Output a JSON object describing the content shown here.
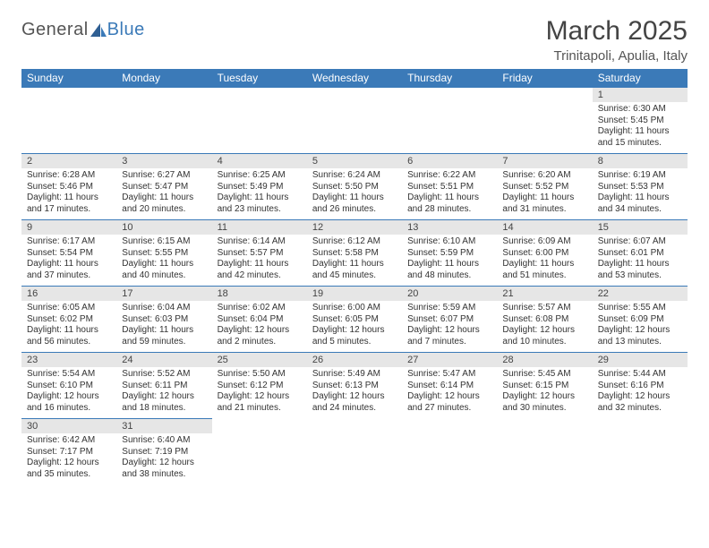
{
  "brand": {
    "part1": "General",
    "part2": "Blue"
  },
  "title": "March 2025",
  "location": "Trinitapoli, Apulia, Italy",
  "colors": {
    "header_bg": "#3b7ab8",
    "header_text": "#ffffff",
    "daynum_bg": "#e6e6e6",
    "border": "#3b7ab8",
    "text": "#333333"
  },
  "fonts": {
    "title_size": 30,
    "location_size": 15,
    "header_size": 12,
    "cell_size": 10
  },
  "weekdays": [
    "Sunday",
    "Monday",
    "Tuesday",
    "Wednesday",
    "Thursday",
    "Friday",
    "Saturday"
  ],
  "weeks": [
    [
      null,
      null,
      null,
      null,
      null,
      null,
      {
        "n": "1",
        "sunrise": "Sunrise: 6:30 AM",
        "sunset": "Sunset: 5:45 PM",
        "day1": "Daylight: 11 hours",
        "day2": "and 15 minutes."
      }
    ],
    [
      {
        "n": "2",
        "sunrise": "Sunrise: 6:28 AM",
        "sunset": "Sunset: 5:46 PM",
        "day1": "Daylight: 11 hours",
        "day2": "and 17 minutes."
      },
      {
        "n": "3",
        "sunrise": "Sunrise: 6:27 AM",
        "sunset": "Sunset: 5:47 PM",
        "day1": "Daylight: 11 hours",
        "day2": "and 20 minutes."
      },
      {
        "n": "4",
        "sunrise": "Sunrise: 6:25 AM",
        "sunset": "Sunset: 5:49 PM",
        "day1": "Daylight: 11 hours",
        "day2": "and 23 minutes."
      },
      {
        "n": "5",
        "sunrise": "Sunrise: 6:24 AM",
        "sunset": "Sunset: 5:50 PM",
        "day1": "Daylight: 11 hours",
        "day2": "and 26 minutes."
      },
      {
        "n": "6",
        "sunrise": "Sunrise: 6:22 AM",
        "sunset": "Sunset: 5:51 PM",
        "day1": "Daylight: 11 hours",
        "day2": "and 28 minutes."
      },
      {
        "n": "7",
        "sunrise": "Sunrise: 6:20 AM",
        "sunset": "Sunset: 5:52 PM",
        "day1": "Daylight: 11 hours",
        "day2": "and 31 minutes."
      },
      {
        "n": "8",
        "sunrise": "Sunrise: 6:19 AM",
        "sunset": "Sunset: 5:53 PM",
        "day1": "Daylight: 11 hours",
        "day2": "and 34 minutes."
      }
    ],
    [
      {
        "n": "9",
        "sunrise": "Sunrise: 6:17 AM",
        "sunset": "Sunset: 5:54 PM",
        "day1": "Daylight: 11 hours",
        "day2": "and 37 minutes."
      },
      {
        "n": "10",
        "sunrise": "Sunrise: 6:15 AM",
        "sunset": "Sunset: 5:55 PM",
        "day1": "Daylight: 11 hours",
        "day2": "and 40 minutes."
      },
      {
        "n": "11",
        "sunrise": "Sunrise: 6:14 AM",
        "sunset": "Sunset: 5:57 PM",
        "day1": "Daylight: 11 hours",
        "day2": "and 42 minutes."
      },
      {
        "n": "12",
        "sunrise": "Sunrise: 6:12 AM",
        "sunset": "Sunset: 5:58 PM",
        "day1": "Daylight: 11 hours",
        "day2": "and 45 minutes."
      },
      {
        "n": "13",
        "sunrise": "Sunrise: 6:10 AM",
        "sunset": "Sunset: 5:59 PM",
        "day1": "Daylight: 11 hours",
        "day2": "and 48 minutes."
      },
      {
        "n": "14",
        "sunrise": "Sunrise: 6:09 AM",
        "sunset": "Sunset: 6:00 PM",
        "day1": "Daylight: 11 hours",
        "day2": "and 51 minutes."
      },
      {
        "n": "15",
        "sunrise": "Sunrise: 6:07 AM",
        "sunset": "Sunset: 6:01 PM",
        "day1": "Daylight: 11 hours",
        "day2": "and 53 minutes."
      }
    ],
    [
      {
        "n": "16",
        "sunrise": "Sunrise: 6:05 AM",
        "sunset": "Sunset: 6:02 PM",
        "day1": "Daylight: 11 hours",
        "day2": "and 56 minutes."
      },
      {
        "n": "17",
        "sunrise": "Sunrise: 6:04 AM",
        "sunset": "Sunset: 6:03 PM",
        "day1": "Daylight: 11 hours",
        "day2": "and 59 minutes."
      },
      {
        "n": "18",
        "sunrise": "Sunrise: 6:02 AM",
        "sunset": "Sunset: 6:04 PM",
        "day1": "Daylight: 12 hours",
        "day2": "and 2 minutes."
      },
      {
        "n": "19",
        "sunrise": "Sunrise: 6:00 AM",
        "sunset": "Sunset: 6:05 PM",
        "day1": "Daylight: 12 hours",
        "day2": "and 5 minutes."
      },
      {
        "n": "20",
        "sunrise": "Sunrise: 5:59 AM",
        "sunset": "Sunset: 6:07 PM",
        "day1": "Daylight: 12 hours",
        "day2": "and 7 minutes."
      },
      {
        "n": "21",
        "sunrise": "Sunrise: 5:57 AM",
        "sunset": "Sunset: 6:08 PM",
        "day1": "Daylight: 12 hours",
        "day2": "and 10 minutes."
      },
      {
        "n": "22",
        "sunrise": "Sunrise: 5:55 AM",
        "sunset": "Sunset: 6:09 PM",
        "day1": "Daylight: 12 hours",
        "day2": "and 13 minutes."
      }
    ],
    [
      {
        "n": "23",
        "sunrise": "Sunrise: 5:54 AM",
        "sunset": "Sunset: 6:10 PM",
        "day1": "Daylight: 12 hours",
        "day2": "and 16 minutes."
      },
      {
        "n": "24",
        "sunrise": "Sunrise: 5:52 AM",
        "sunset": "Sunset: 6:11 PM",
        "day1": "Daylight: 12 hours",
        "day2": "and 18 minutes."
      },
      {
        "n": "25",
        "sunrise": "Sunrise: 5:50 AM",
        "sunset": "Sunset: 6:12 PM",
        "day1": "Daylight: 12 hours",
        "day2": "and 21 minutes."
      },
      {
        "n": "26",
        "sunrise": "Sunrise: 5:49 AM",
        "sunset": "Sunset: 6:13 PM",
        "day1": "Daylight: 12 hours",
        "day2": "and 24 minutes."
      },
      {
        "n": "27",
        "sunrise": "Sunrise: 5:47 AM",
        "sunset": "Sunset: 6:14 PM",
        "day1": "Daylight: 12 hours",
        "day2": "and 27 minutes."
      },
      {
        "n": "28",
        "sunrise": "Sunrise: 5:45 AM",
        "sunset": "Sunset: 6:15 PM",
        "day1": "Daylight: 12 hours",
        "day2": "and 30 minutes."
      },
      {
        "n": "29",
        "sunrise": "Sunrise: 5:44 AM",
        "sunset": "Sunset: 6:16 PM",
        "day1": "Daylight: 12 hours",
        "day2": "and 32 minutes."
      }
    ],
    [
      {
        "n": "30",
        "sunrise": "Sunrise: 6:42 AM",
        "sunset": "Sunset: 7:17 PM",
        "day1": "Daylight: 12 hours",
        "day2": "and 35 minutes."
      },
      {
        "n": "31",
        "sunrise": "Sunrise: 6:40 AM",
        "sunset": "Sunset: 7:19 PM",
        "day1": "Daylight: 12 hours",
        "day2": "and 38 minutes."
      },
      null,
      null,
      null,
      null,
      null
    ]
  ]
}
